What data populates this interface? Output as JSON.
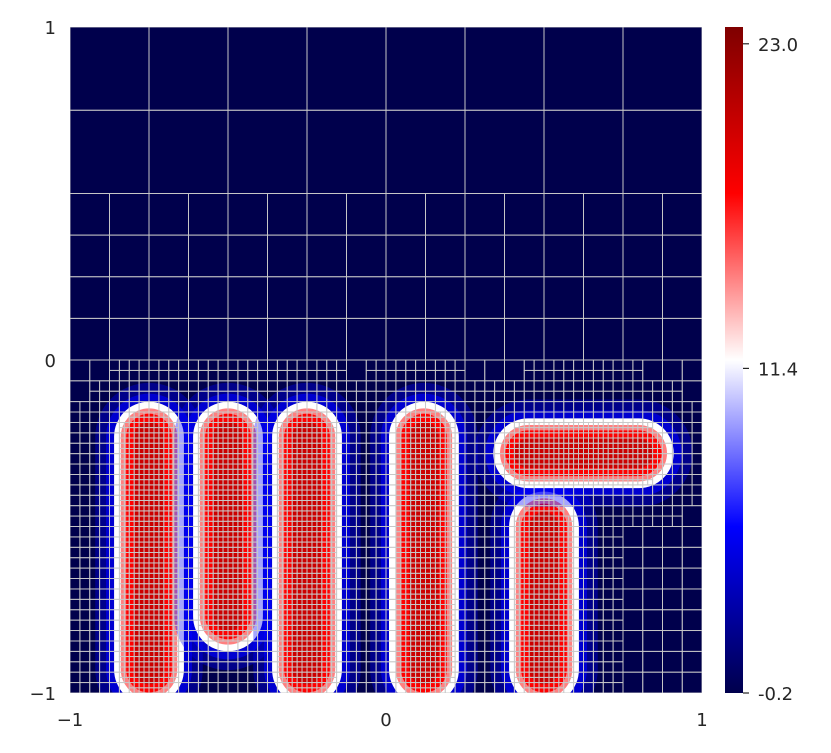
{
  "chart_data": {
    "type": "heatmap",
    "title": "",
    "xlabel": "",
    "ylabel": "",
    "xlim": [
      -1,
      1
    ],
    "ylim": [
      -1,
      1
    ],
    "x_ticks": [
      "−1",
      "0",
      "1"
    ],
    "y_ticks": [
      "−1",
      "0",
      "1"
    ],
    "grid": "adaptive quadtree mesh (light grey lines), refined near peaks",
    "colormap": "seismic",
    "colors": {
      "low": "#00004c",
      "mid_low": "#0000ff",
      "mid": "#ffffff",
      "mid_high": "#ff0000",
      "high": "#7f0000",
      "mesh": "#c8c8c8"
    },
    "colorbar": {
      "range": [
        -0.2,
        23.6
      ],
      "ticks": [
        {
          "value": 23.0,
          "label": "23.0"
        },
        {
          "value": 11.4,
          "label": "11.4"
        },
        {
          "value": -0.2,
          "label": "-0.2"
        }
      ]
    },
    "features": [
      {
        "shape": "vertical-capsule",
        "x": -0.75,
        "y_range": [
          -0.93,
          -0.23
        ],
        "peak": 23.0
      },
      {
        "shape": "vertical-capsule",
        "x": -0.5,
        "y_range": [
          -0.77,
          -0.23
        ],
        "peak": 23.0
      },
      {
        "shape": "vertical-capsule",
        "x": -0.25,
        "y_range": [
          -0.93,
          -0.23
        ],
        "peak": 23.0
      },
      {
        "shape": "vertical-capsule",
        "x": 0.12,
        "y_range": [
          -0.93,
          -0.23
        ],
        "peak": 23.0
      },
      {
        "shape": "vertical-capsule",
        "x": 0.5,
        "y_range": [
          -0.93,
          -0.5
        ],
        "peak": 23.0
      },
      {
        "shape": "horizontal-capsule",
        "y": -0.28,
        "x_range": [
          0.45,
          0.8
        ],
        "peak": 23.0
      }
    ]
  }
}
